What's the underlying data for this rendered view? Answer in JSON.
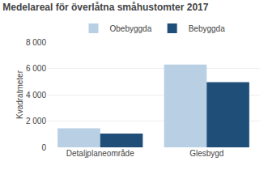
{
  "chart_data": {
    "type": "bar",
    "title": "Medelareal för överlåtna småhustomter 2017",
    "ylabel": "Kvadratmeter",
    "categories": [
      "Detaljplaneområde",
      "Glesbygd"
    ],
    "series": [
      {
        "name": "Obebyggda",
        "color": "#b8cfe4",
        "values": [
          1450,
          6300
        ]
      },
      {
        "name": "Bebyggda",
        "color": "#1f4e79",
        "values": [
          1050,
          4950
        ]
      }
    ],
    "ylim": [
      0,
      8000
    ],
    "yticks": [
      0,
      {
        "value": 2000,
        "label": "2 000"
      },
      {
        "value": 4000,
        "label": "4 000"
      },
      {
        "value": 6000,
        "label": "6 000"
      },
      {
        "value": 8000,
        "label": "8 000"
      }
    ],
    "grid": true,
    "legend": "top"
  }
}
